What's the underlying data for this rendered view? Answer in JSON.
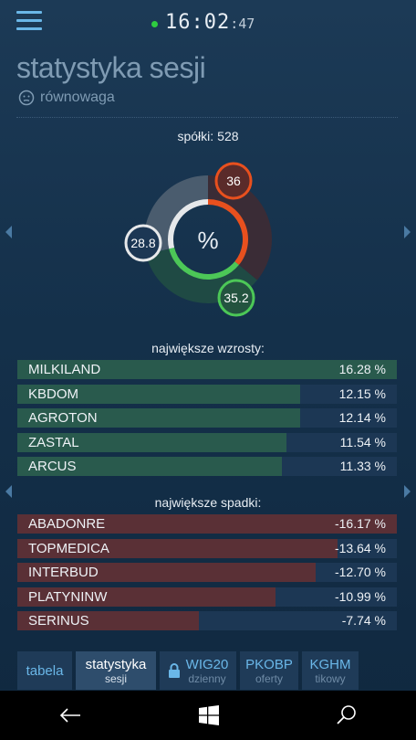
{
  "header": {
    "time_hm": "16:02",
    "time_sec": ":47",
    "status_color": "#2ecc40"
  },
  "page": {
    "title": "statystyka sesji",
    "mood": "równowaga"
  },
  "summary": {
    "label": "spółki:",
    "count": "528"
  },
  "donut": {
    "center": "%",
    "segments": [
      {
        "name": "up",
        "label": "36",
        "percent": 36,
        "color": "#e8501e"
      },
      {
        "name": "down",
        "label": "35.2",
        "percent": 35.2,
        "color": "#4cc757"
      },
      {
        "name": "flat",
        "label": "28.8",
        "percent": 28.8,
        "color": "#e6e8ea"
      }
    ]
  },
  "gainers": {
    "title": "największe wzrosty:",
    "rows": [
      {
        "name": "MILKILAND",
        "value": "16.28",
        "unit": "%",
        "fill": 1.0
      },
      {
        "name": "KBDOM",
        "value": "12.15",
        "unit": "%",
        "fill": 0.746
      },
      {
        "name": "AGROTON",
        "value": "12.14",
        "unit": "%",
        "fill": 0.746
      },
      {
        "name": "ZASTAL",
        "value": "11.54",
        "unit": "%",
        "fill": 0.709
      },
      {
        "name": "ARCUS",
        "value": "11.33",
        "unit": "%",
        "fill": 0.696
      }
    ]
  },
  "losers": {
    "title": "największe spadki:",
    "rows": [
      {
        "name": "ABADONRE",
        "value": "-16.17",
        "unit": "%",
        "fill": 1.0
      },
      {
        "name": "TOPMEDICA",
        "value": "-13.64",
        "unit": "%",
        "fill": 0.844
      },
      {
        "name": "INTERBUD",
        "value": "-12.70",
        "unit": "%",
        "fill": 0.785
      },
      {
        "name": "PLATYNINW",
        "value": "-10.99",
        "unit": "%",
        "fill": 0.68
      },
      {
        "name": "SERINUS",
        "value": "-7.74",
        "unit": "%",
        "fill": 0.479
      }
    ]
  },
  "tabs": [
    {
      "label": "tabela",
      "sub": ""
    },
    {
      "label": "statystyka",
      "sub": "sesji"
    },
    {
      "label": "WIG20",
      "sub": "dzienny"
    },
    {
      "label": "PKOBP",
      "sub": "oferty"
    },
    {
      "label": "KGHM",
      "sub": "tikowy"
    }
  ],
  "icons": [
    "menu-icon",
    "neutral-face-icon",
    "lock-icon",
    "back-icon",
    "windows-icon",
    "search-icon"
  ]
}
